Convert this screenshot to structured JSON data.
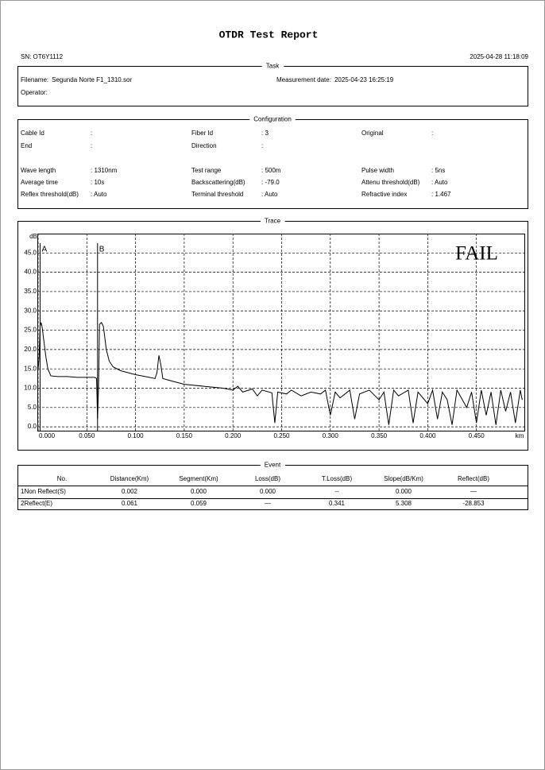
{
  "header": {
    "title": "OTDR Test Report",
    "serial": "SN: OT6Y1112",
    "timestamp": "2025-04-28 11:18:09"
  },
  "task": {
    "legend": "Task",
    "fields": [
      {
        "label": "Filename:",
        "value": "Segunda Norte F1_1310.sor"
      },
      {
        "label": "Measurement date:",
        "value": "2025-04-23 16:25:19"
      },
      {
        "label": "Operator:"
      }
    ]
  },
  "configuration": {
    "legend": "Configuration",
    "rows": [
      [
        {
          "label": "Cable Id",
          "value": ":"
        },
        {
          "label": "Fiber Id",
          "value": ": 3"
        },
        {
          "label": "Original",
          "value": ":"
        }
      ],
      [
        {
          "label": "End",
          "value": ":"
        },
        {
          "label": "Direction",
          "value": ":"
        }
      ],
      [
        {
          "label": "Wave length",
          "value": ": 1310nm"
        },
        {
          "label": "Test range",
          "value": ": 500m"
        },
        {
          "label": "Pulse width",
          "value": ": 5ns"
        }
      ],
      [
        {
          "label": "Average time",
          "value": ": 10s"
        },
        {
          "label": "Backscattering(dB)",
          "value": ": -79.0"
        },
        {
          "label": "Attenu threshold(dB)",
          "value": ": Auto"
        }
      ],
      [
        {
          "label": "Reflex threshold(dB)",
          "value": ": Auto"
        },
        {
          "label": "Terminal threshold",
          "value": ": Auto"
        },
        {
          "label": "Refractive index",
          "value": ": 1.467"
        }
      ]
    ]
  },
  "trace": {
    "legend": "Trace"
  },
  "chart_data": {
    "type": "line",
    "y_unit": "dB",
    "x_unit": "km",
    "verdict": "FAIL",
    "grid": true,
    "xlim": [
      0,
      0.5
    ],
    "ylim": [
      -1,
      50
    ],
    "xticks": [
      {
        "value": 0,
        "label": "0.000"
      },
      {
        "value": 0.05,
        "label": "0.050"
      },
      {
        "value": 0.1,
        "label": "0.100"
      },
      {
        "value": 0.15,
        "label": "0.150"
      },
      {
        "value": 0.2,
        "label": "0.200"
      },
      {
        "value": 0.25,
        "label": "0.250"
      },
      {
        "value": 0.3,
        "label": "0.300"
      },
      {
        "value": 0.35,
        "label": "0.350"
      },
      {
        "value": 0.4,
        "label": "0.400"
      },
      {
        "value": 0.45,
        "label": "0.450"
      }
    ],
    "yticks": [
      {
        "value": 0,
        "label": "0.0"
      },
      {
        "value": 5,
        "label": "5.0"
      },
      {
        "value": 10,
        "label": "10.0"
      },
      {
        "value": 15,
        "label": "15.0"
      },
      {
        "value": 20,
        "label": "20.0"
      },
      {
        "value": 25,
        "label": "25.0"
      },
      {
        "value": 30,
        "label": "30.0"
      },
      {
        "value": 35,
        "label": "35.0"
      },
      {
        "value": 40,
        "label": "40.0"
      },
      {
        "value": 45,
        "label": "45.0"
      }
    ],
    "markers": [
      {
        "label": "A",
        "x": 0.002
      },
      {
        "label": "B",
        "x": 0.061
      }
    ],
    "x": [
      0,
      0.001,
      0.002,
      0.003,
      0.004,
      0.006,
      0.008,
      0.01,
      0.013,
      0.02,
      0.03,
      0.04,
      0.05,
      0.058,
      0.06,
      0.061,
      0.062,
      0.063,
      0.065,
      0.067,
      0.07,
      0.073,
      0.077,
      0.085,
      0.1,
      0.11,
      0.12,
      0.122,
      0.124,
      0.126,
      0.128,
      0.135,
      0.15,
      0.17,
      0.19,
      0.2,
      0.205,
      0.21,
      0.22,
      0.225,
      0.23,
      0.24,
      0.243,
      0.246,
      0.255,
      0.26,
      0.27,
      0.28,
      0.29,
      0.295,
      0.3,
      0.305,
      0.31,
      0.32,
      0.325,
      0.33,
      0.34,
      0.35,
      0.355,
      0.36,
      0.365,
      0.37,
      0.38,
      0.385,
      0.39,
      0.4,
      0.405,
      0.41,
      0.415,
      0.42,
      0.425,
      0.43,
      0.44,
      0.445,
      0.45,
      0.455,
      0.46,
      0.465,
      0.47,
      0.475,
      0.48,
      0.485,
      0.49,
      0.495,
      0.497
    ],
    "series": [
      {
        "color": "#000000",
        "values": [
          15,
          18,
          26,
          27,
          26,
          22,
          18,
          15,
          13.2,
          13,
          13,
          12.8,
          12.8,
          12.8,
          12.5,
          2,
          10,
          26.5,
          27,
          26,
          20,
          17,
          15.5,
          14.5,
          13.5,
          13,
          12.5,
          14,
          18.5,
          16,
          12.5,
          12,
          11,
          10.5,
          10,
          9.5,
          10.5,
          9,
          9.8,
          8,
          9.5,
          8.8,
          1,
          9,
          8.5,
          9.5,
          8,
          9,
          8.5,
          9.5,
          3,
          9,
          7.5,
          9.5,
          2,
          8.5,
          9.5,
          7,
          9,
          0.5,
          9.5,
          8,
          9.5,
          1,
          9,
          6,
          9.5,
          2,
          9,
          7,
          0.5,
          9.5,
          5,
          9,
          1,
          9.5,
          3,
          9,
          0.5,
          9.5,
          4,
          9,
          1,
          9.5,
          7
        ]
      }
    ]
  },
  "event": {
    "legend": "Event",
    "columns": [
      "No.",
      "Distance(Km)",
      "Segment(Km)",
      "Loss(dB)",
      "T.Loss(dB)",
      "Slope(dB/Km)",
      "Reflect(dB)"
    ],
    "rows": [
      [
        "1Non Reflect(S)",
        "0.002",
        "0.000",
        "0.000",
        "--",
        "0.000",
        "—"
      ],
      [
        "2Reflect(E)",
        "0.061",
        "0.059",
        "—",
        "0.341",
        "5.308",
        "-28.853"
      ]
    ]
  }
}
